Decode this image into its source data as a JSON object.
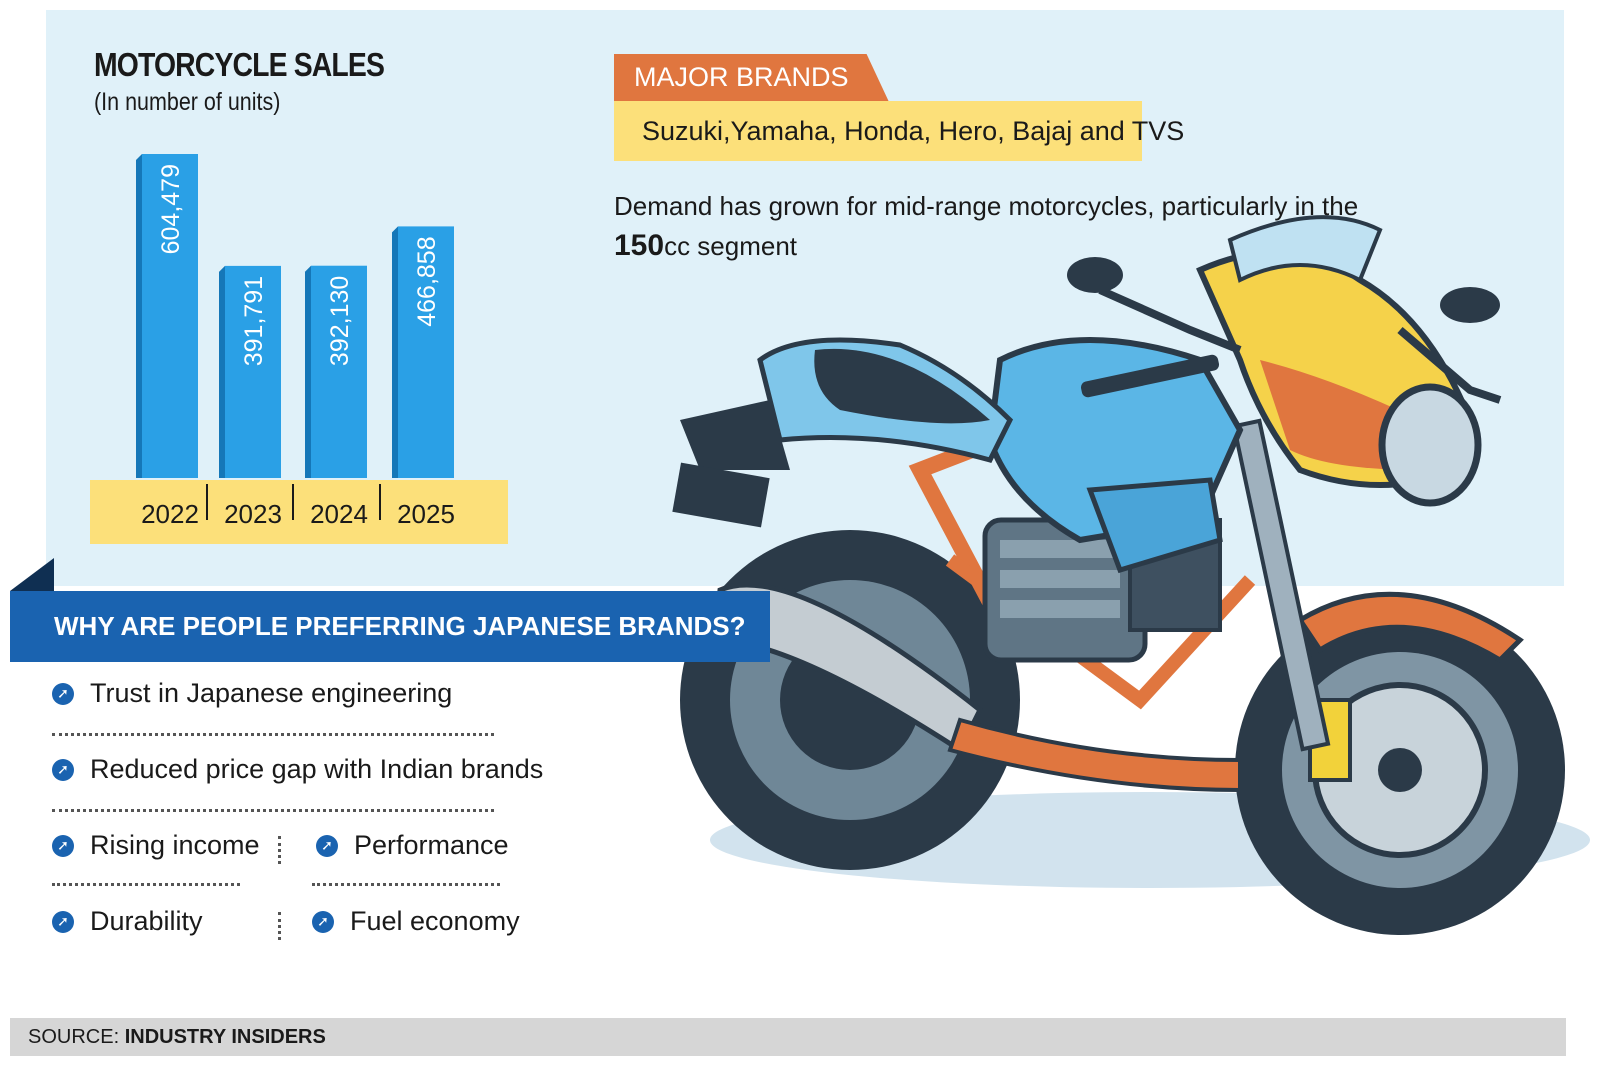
{
  "chart_data": {
    "type": "bar",
    "title": "MOTORCYCLE SALES",
    "subtitle": "(In number of units)",
    "categories": [
      "2022",
      "2023",
      "2024",
      "2025"
    ],
    "values": [
      604479,
      391791,
      392130,
      466858
    ],
    "value_labels": [
      "604,479",
      "391,791",
      "392,130",
      "466,858"
    ],
    "xlabel": "",
    "ylabel": "",
    "ylim": [
      0,
      620000
    ],
    "bar_color": "#2aa0e6"
  },
  "brands": {
    "tag": "MAJOR BRANDS",
    "list": "Suzuki,Yamaha, Honda, Hero, Bajaj and TVS"
  },
  "demand": {
    "text_before": "Demand has grown for mid-range motorcycles, particularly in the",
    "highlight": "150",
    "text_after": "cc segment"
  },
  "why": {
    "heading": "WHY ARE PEOPLE PREFERRING JAPANESE BRANDS?",
    "reasons": [
      "Trust in Japanese engineering",
      "Reduced price gap with Indian brands",
      "Rising income",
      "Performance",
      "Durability",
      "Fuel economy"
    ]
  },
  "source": {
    "label": "SOURCE:",
    "value": "INDUSTRY INSIDERS"
  },
  "colors": {
    "panel": "#e0f1f9",
    "bar": "#2aa0e6",
    "axis_band": "#fce07a",
    "orange": "#e0763f",
    "blue": "#1a63b0"
  }
}
